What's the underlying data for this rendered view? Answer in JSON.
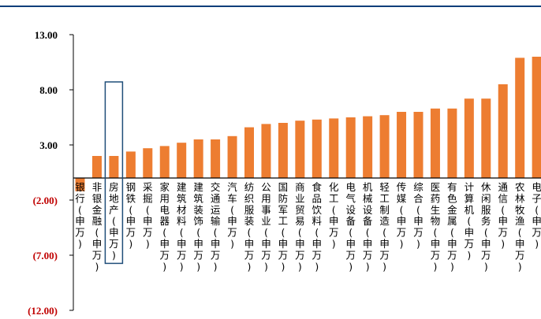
{
  "colors": {
    "top_rule": "#0b3e7a",
    "bar": "#ed7d31",
    "negative_label": "#c00000",
    "axis": "#000000",
    "highlight_box": "#1f4e79"
  },
  "chart_data": {
    "type": "bar",
    "title": "",
    "xlabel": "",
    "ylabel": "",
    "ylim": [
      -12,
      13
    ],
    "y_ticks": [
      {
        "value": 13,
        "label": "13.00",
        "negative": false
      },
      {
        "value": 8,
        "label": "8.00",
        "negative": false
      },
      {
        "value": 3,
        "label": "3.00",
        "negative": false
      },
      {
        "value": -2,
        "label": "(2.00)",
        "negative": true
      },
      {
        "value": -7,
        "label": "(7.00)",
        "negative": true
      },
      {
        "value": -12,
        "label": "(12.00)",
        "negative": true
      }
    ],
    "categories": [
      "银行(申万)",
      "非银金融(申万)",
      "房地产(申万)",
      "钢铁(申万)",
      "采掘(申万)",
      "家用电器(申万)",
      "建筑材料(申万)",
      "建筑装饰(申万)",
      "交通运输(申万)",
      "汽车(申万)",
      "纺织服装(申万)",
      "公用事业(申万)",
      "国防军工(申万)",
      "商业贸易(申万)",
      "食品饮料(申万)",
      "化工(申万)",
      "电气设备(申万)",
      "机械设备(申万)",
      "轻工制造(申万)",
      "传媒(申万)",
      "综合(申万)",
      "医药生物(申万)",
      "有色金属(申万)",
      "计算机(申万)",
      "休闲服务(申万)",
      "通信(申万)",
      "农林牧渔(申万)",
      "电子(申万)"
    ],
    "values": [
      -1.2,
      2.0,
      2.0,
      2.4,
      2.7,
      2.9,
      3.2,
      3.5,
      3.5,
      3.8,
      4.6,
      4.9,
      5.0,
      5.2,
      5.3,
      5.4,
      5.5,
      5.6,
      5.7,
      6.0,
      6.0,
      6.3,
      6.3,
      7.2,
      7.2,
      8.5,
      10.9,
      11.0
    ],
    "highlight_category": "房地产(申万)",
    "grid": false,
    "legend": "none"
  }
}
